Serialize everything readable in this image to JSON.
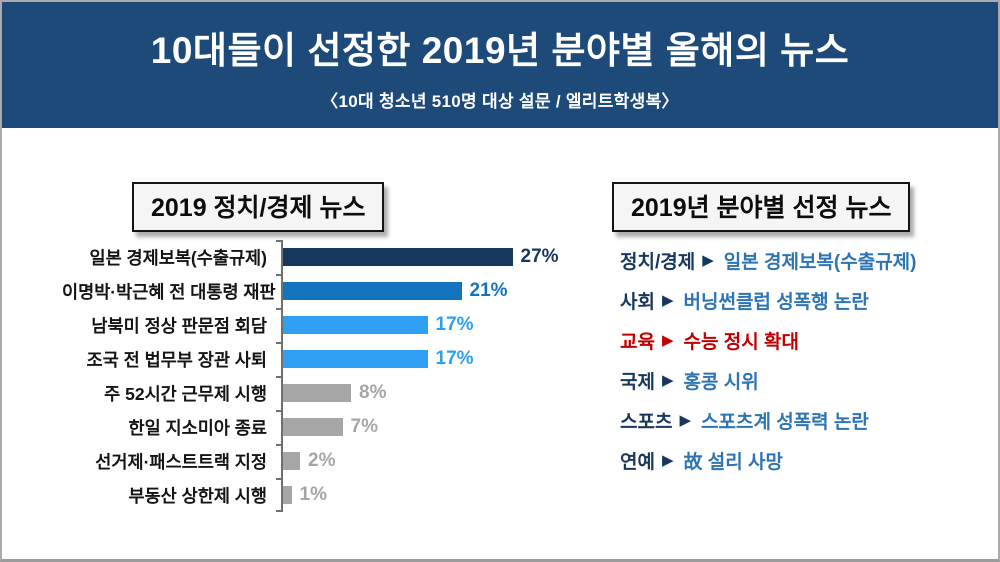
{
  "header": {
    "title": "10대들이 선정한 2019년 분야별 올해의 뉴스",
    "subtitle": "〈10대 청소년 510명 대상 설문 / 엘리트학생복〉"
  },
  "left_panel": {
    "title": "2019 정치/경제 뉴스"
  },
  "right_panel": {
    "title": "2019년 분야별 선정 뉴스",
    "items": [
      {
        "category": "정치/경제",
        "news": "일본 경제보복(수출규제)",
        "highlight": false
      },
      {
        "category": "사회",
        "news": "버닝썬클럽 성폭행 논란",
        "highlight": false
      },
      {
        "category": "교육",
        "news": "수능 정시 확대",
        "highlight": true
      },
      {
        "category": "국제",
        "news": "홍콩 시위",
        "highlight": false
      },
      {
        "category": "스포츠",
        "news": "스포츠계 성폭력 논란",
        "highlight": false
      },
      {
        "category": "연예",
        "news": "故 설리 사망",
        "highlight": false
      }
    ]
  },
  "chart_data": {
    "type": "bar",
    "orientation": "horizontal",
    "title": "2019 정치/경제 뉴스",
    "categories": [
      "일본 경제보복(수출규제)",
      "이명박·박근혜 전 대통령 재판",
      "남북미 정상 판문점 회담",
      "조국 전 법무부 장관 사퇴",
      "주 52시간 근무제 시행",
      "한일 지소미아 종료",
      "선거제·패스트트랙 지정",
      "부동산 상한제 시행"
    ],
    "values": [
      27,
      21,
      17,
      17,
      8,
      7,
      2,
      1
    ],
    "unit": "%",
    "xlim": [
      0,
      30
    ],
    "grid": false,
    "legend": false,
    "bar_colors": [
      "#17375d",
      "#1274be",
      "#2e9ff2",
      "#2e9ff2",
      "#a6a6a6",
      "#a6a6a6",
      "#a6a6a6",
      "#a6a6a6"
    ]
  },
  "colors": {
    "header_bg": "#1d4a78",
    "bar_dark_navy": "#17375d",
    "bar_blue": "#1274be",
    "bar_light_blue": "#2e9ff2",
    "bar_gray": "#a6a6a6",
    "news_category_navy": "#17375d",
    "news_value_blue": "#2e74b5",
    "highlight_red": "#c00000",
    "axis_gray": "#707070"
  }
}
